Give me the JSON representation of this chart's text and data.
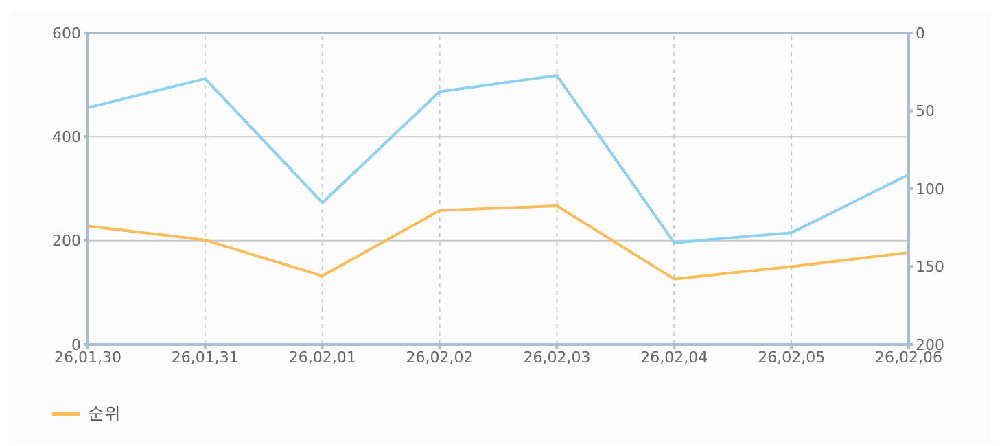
{
  "chart_data": {
    "type": "line",
    "categories": [
      "26,01,30",
      "26,01,31",
      "26,02,01",
      "26,02,02",
      "26,02,03",
      "26,02,04",
      "26,02,05",
      "26,02,06"
    ],
    "series": [
      {
        "color": "#8ed0f0",
        "values": [
          456,
          512,
          273,
          487,
          518,
          196,
          215,
          327
        ]
      },
      {
        "name": "순위",
        "color": "#fbbd5a",
        "axis": "y2",
        "values": [
          124,
          133,
          156,
          114,
          111,
          158,
          150,
          141
        ]
      }
    ],
    "ylim": [
      0,
      600
    ],
    "yticks": [
      0,
      200,
      400,
      600
    ],
    "y2lim": [
      200,
      0
    ],
    "y2ticks": [
      0,
      50,
      100,
      150,
      200
    ],
    "grid": true,
    "legend": "bottom left",
    "marker": "none",
    "line_style": "solid"
  }
}
